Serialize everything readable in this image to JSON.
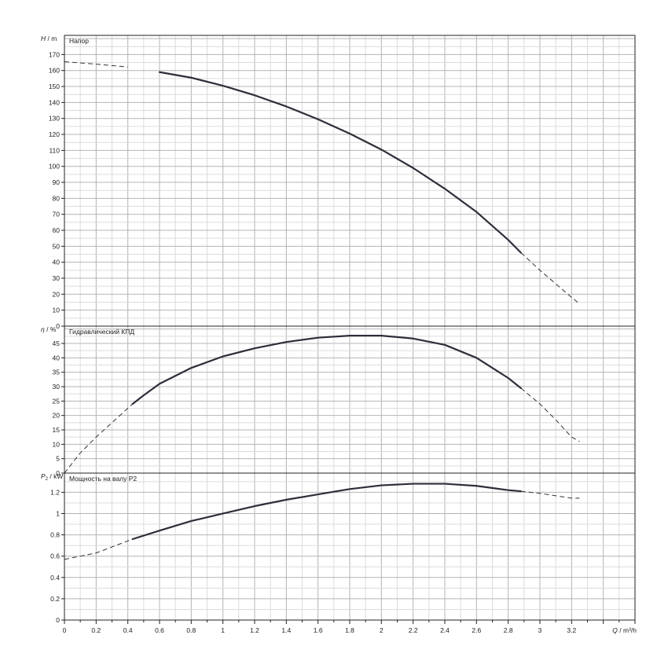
{
  "chart_data": {
    "type": "line",
    "x_axis": {
      "symbol": "Q",
      "unit": "m³/h",
      "min": 0,
      "max": 3.6,
      "major_step": 0.2,
      "ticks": [
        0,
        0.2,
        0.4,
        0.6,
        0.8,
        1,
        1.2,
        1.4,
        1.6,
        1.8,
        2,
        2.2,
        2.4,
        2.6,
        2.8,
        3,
        3.2
      ],
      "tick_labels": [
        "0",
        "0.2",
        "0.4",
        "0.6",
        "0.8",
        "1",
        "1.2",
        "1.4",
        "1.6",
        "1.8",
        "2",
        "2.2",
        "2.4",
        "2.6",
        "2.8",
        "3",
        "3.2"
      ]
    },
    "grid": true,
    "panels": [
      {
        "id": "head",
        "title": "Напор",
        "y_symbol": "H",
        "y_subscript": "",
        "y_unit": "m",
        "ylim": [
          0,
          182
        ],
        "y_ticks": [
          0,
          10,
          20,
          30,
          40,
          50,
          60,
          70,
          80,
          90,
          100,
          110,
          120,
          130,
          140,
          150,
          160,
          170
        ],
        "y_tick_labels": [
          "0",
          "10",
          "20",
          "30",
          "40",
          "50",
          "60",
          "70",
          "80",
          "90",
          "100",
          "110",
          "120",
          "130",
          "140",
          "150",
          "160",
          "170"
        ],
        "solid_range": [
          0.43,
          2.88
        ],
        "points": [
          [
            0,
            165.5
          ],
          [
            0.2,
            164
          ],
          [
            0.4,
            162.2
          ],
          [
            0.6,
            159
          ],
          [
            0.8,
            155.5
          ],
          [
            1.0,
            150.5
          ],
          [
            1.2,
            144.5
          ],
          [
            1.4,
            137.5
          ],
          [
            1.6,
            129.5
          ],
          [
            1.8,
            120.5
          ],
          [
            2.0,
            110.5
          ],
          [
            2.2,
            99
          ],
          [
            2.4,
            86
          ],
          [
            2.6,
            71.5
          ],
          [
            2.8,
            54
          ],
          [
            2.88,
            46
          ],
          [
            3.0,
            35
          ],
          [
            3.2,
            18
          ],
          [
            3.25,
            14
          ]
        ]
      },
      {
        "id": "efficiency",
        "title": "Гидравлический КПД",
        "y_symbol": "η",
        "y_subscript": "",
        "y_unit": "%",
        "ylim": [
          0,
          51
        ],
        "y_ticks": [
          0,
          5,
          10,
          15,
          20,
          25,
          30,
          35,
          40,
          45
        ],
        "y_tick_labels": [
          "0",
          "5",
          "10",
          "15",
          "20",
          "25",
          "30",
          "35",
          "40",
          "45"
        ],
        "solid_range": [
          0.43,
          2.88
        ],
        "points": [
          [
            0,
            0
          ],
          [
            0.1,
            7
          ],
          [
            0.2,
            12.5
          ],
          [
            0.3,
            17.5
          ],
          [
            0.43,
            24
          ],
          [
            0.5,
            27
          ],
          [
            0.6,
            31
          ],
          [
            0.8,
            36.5
          ],
          [
            1.0,
            40.5
          ],
          [
            1.2,
            43.3
          ],
          [
            1.4,
            45.5
          ],
          [
            1.6,
            47
          ],
          [
            1.8,
            47.7
          ],
          [
            2.0,
            47.7
          ],
          [
            2.2,
            46.7
          ],
          [
            2.4,
            44.5
          ],
          [
            2.6,
            40
          ],
          [
            2.8,
            33
          ],
          [
            2.88,
            29.5
          ],
          [
            3.0,
            24
          ],
          [
            3.1,
            18.5
          ],
          [
            3.2,
            12.5
          ],
          [
            3.25,
            11
          ]
        ]
      },
      {
        "id": "power",
        "title": "Мощность на валу P2",
        "y_symbol": "P",
        "y_subscript": "2",
        "y_unit": "kW",
        "ylim": [
          0,
          1.38
        ],
        "y_ticks": [
          0,
          0.2,
          0.4,
          0.6,
          0.8,
          1,
          1.2
        ],
        "y_tick_labels": [
          "0",
          "0.2",
          "0.4",
          "0.6",
          "0.8",
          "1",
          "1.2"
        ],
        "solid_range": [
          0.43,
          2.88
        ],
        "points": [
          [
            0,
            0.57
          ],
          [
            0.2,
            0.63
          ],
          [
            0.43,
            0.76
          ],
          [
            0.6,
            0.84
          ],
          [
            0.8,
            0.93
          ],
          [
            1.0,
            1.0
          ],
          [
            1.2,
            1.07
          ],
          [
            1.4,
            1.13
          ],
          [
            1.6,
            1.18
          ],
          [
            1.8,
            1.23
          ],
          [
            2.0,
            1.265
          ],
          [
            2.2,
            1.28
          ],
          [
            2.4,
            1.28
          ],
          [
            2.6,
            1.26
          ],
          [
            2.8,
            1.22
          ],
          [
            2.88,
            1.21
          ],
          [
            3.0,
            1.19
          ],
          [
            3.2,
            1.145
          ],
          [
            3.25,
            1.145
          ]
        ]
      }
    ]
  }
}
